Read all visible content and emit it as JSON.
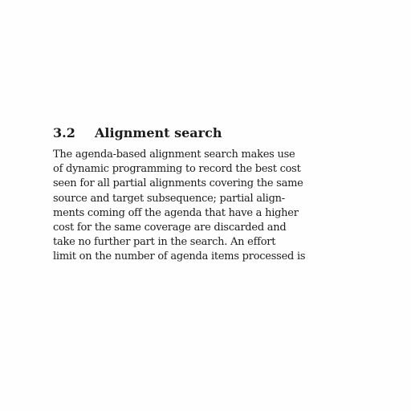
{
  "section": {
    "number": "3.2",
    "title": "Alignment search",
    "lines": [
      "The agenda-based alignment search makes use",
      "of dynamic programming to record the best cost",
      "seen for all partial alignments covering the same",
      "source and target subsequence; partial align-",
      "ments coming off the agenda that have a higher",
      "cost for the same coverage are discarded and",
      "take no further part in the search. An effort",
      "limit on the number of agenda items processed is"
    ]
  }
}
